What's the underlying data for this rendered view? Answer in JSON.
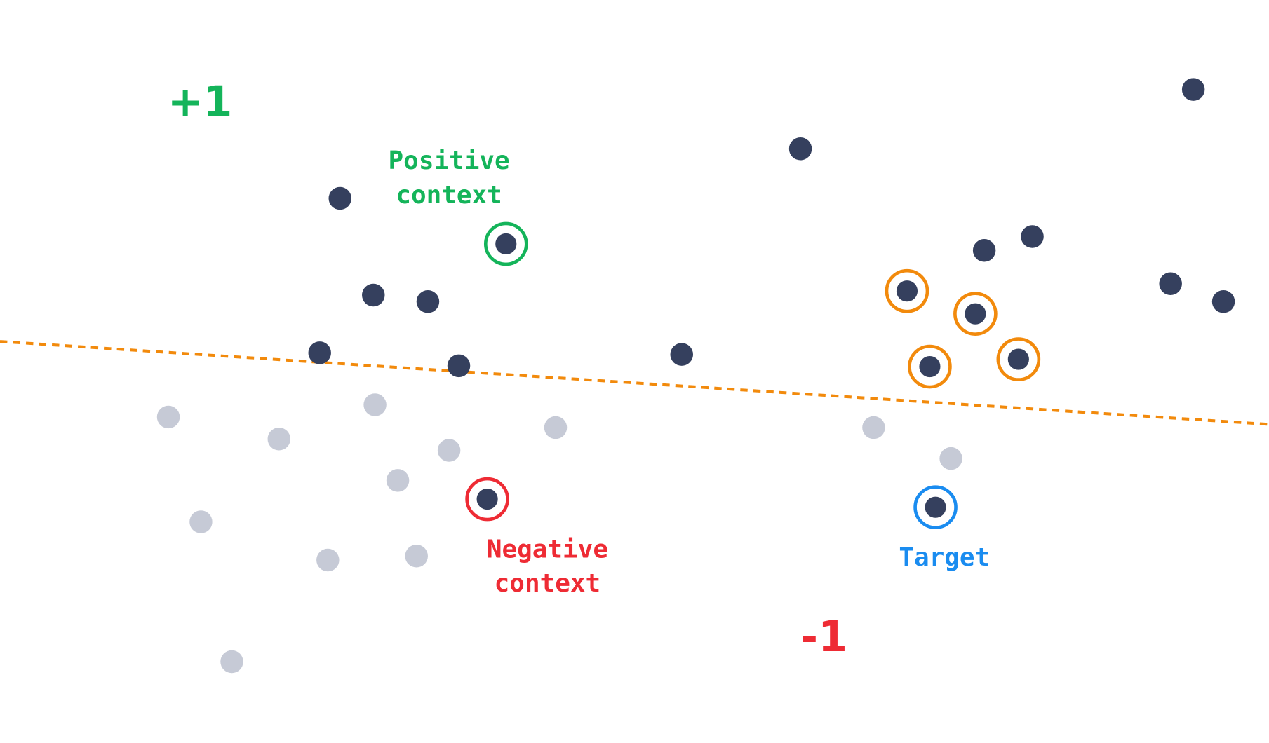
{
  "colors": {
    "point_dark": "#35405E",
    "point_light": "#C6CAD6",
    "positive": "#14B45A",
    "negative": "#EE2B34",
    "target": "#1A8CF0",
    "highlight": "#F28A0C",
    "boundary": "#F28A0C"
  },
  "labels": {
    "plus_one": "+1",
    "minus_one": "-1",
    "positive_context_line1": "Positive",
    "positive_context_line2": "context",
    "negative_context_line1": "Negative",
    "negative_context_line2": "context",
    "target": "Target"
  },
  "boundary": {
    "style": "dashed"
  }
}
